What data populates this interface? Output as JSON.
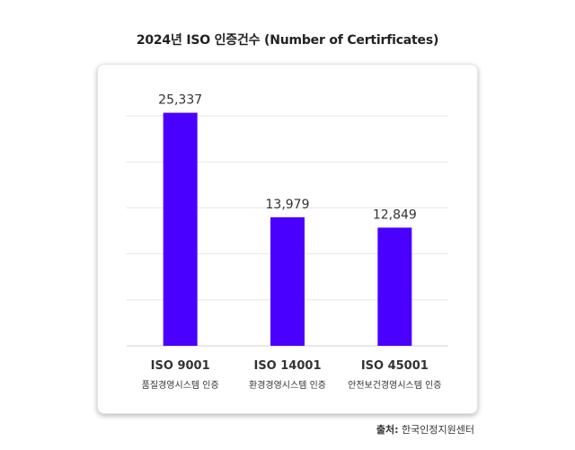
{
  "source": {
    "label": "출처:",
    "text": "한국인정지원센터"
  },
  "chart_data": {
    "type": "bar",
    "title": "2024년 ISO 인증건수 (Number of Certirficates)",
    "categories": [
      "ISO 9001",
      "ISO 14001",
      "ISO 45001"
    ],
    "category_descriptions": [
      "품질경영시스템 인증",
      "환경경영시스템 인증",
      "안전보건경영시스템 인증"
    ],
    "values": [
      25337,
      13979,
      12849
    ],
    "value_labels": [
      "25,337",
      "13,979",
      "12,849"
    ],
    "ylim": [
      0,
      25000
    ],
    "grid": true,
    "legend": "none",
    "colors": {
      "bar": "#4a00ff",
      "grid": "#e6e6e6",
      "axis": "#d0d0d0",
      "label": "#333333"
    }
  }
}
